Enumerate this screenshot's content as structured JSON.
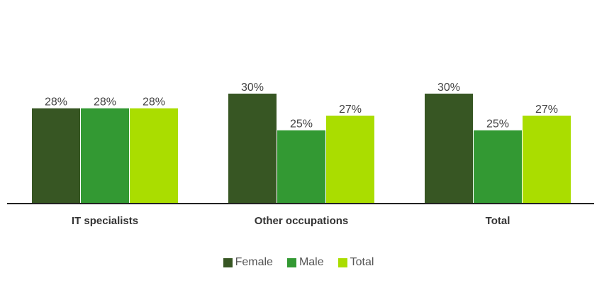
{
  "chart_data": {
    "type": "bar",
    "categories": [
      "IT specialists",
      "Other occupations",
      "Total"
    ],
    "series": [
      {
        "name": "Female",
        "color": "#375623",
        "values": [
          28,
          30,
          30
        ],
        "labels": [
          "28%",
          "30%",
          "30%"
        ]
      },
      {
        "name": "Male",
        "color": "#339933",
        "values": [
          28,
          25,
          25
        ],
        "labels": [
          "28%",
          "25%",
          "25%"
        ]
      },
      {
        "name": "Total",
        "color": "#aadd00",
        "values": [
          28,
          27,
          27
        ],
        "labels": [
          "28%",
          "27%",
          "27%"
        ]
      }
    ],
    "title": "",
    "xlabel": "",
    "ylabel": "",
    "ylim": [
      15,
      35
    ],
    "grid": false,
    "legend_position": "bottom"
  }
}
